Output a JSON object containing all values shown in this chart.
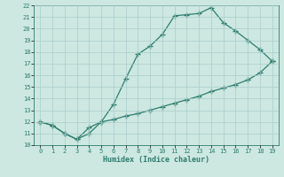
{
  "xlabel": "Humidex (Indice chaleur)",
  "line1_x": [
    0,
    1,
    2,
    3,
    4,
    5,
    6,
    7,
    8,
    9,
    10,
    11,
    12,
    13,
    14,
    15,
    16,
    17,
    18,
    19
  ],
  "line1_y": [
    12,
    11.7,
    11,
    10.5,
    11,
    12,
    13.5,
    15.7,
    17.8,
    18.5,
    19.5,
    21.1,
    21.2,
    21.3,
    21.8,
    20.5,
    19.8,
    19.0,
    18.2,
    17.2
  ],
  "line2_x": [
    0,
    1,
    2,
    3,
    4,
    5,
    6,
    7,
    8,
    9,
    10,
    11,
    12,
    13,
    14,
    15,
    16,
    17,
    18,
    19
  ],
  "line2_y": [
    12,
    11.7,
    11,
    10.5,
    11.5,
    12.0,
    12.2,
    12.5,
    12.7,
    13.0,
    13.3,
    13.6,
    13.9,
    14.2,
    14.6,
    14.9,
    15.2,
    15.6,
    16.2,
    17.2
  ],
  "line_color": "#2e7d6e",
  "bg_color": "#cce8e0",
  "grid_color": "#aacccc",
  "xlim": [
    -0.5,
    19.5
  ],
  "ylim": [
    10,
    22
  ],
  "xticks": [
    0,
    1,
    2,
    3,
    4,
    5,
    6,
    7,
    8,
    9,
    10,
    11,
    12,
    13,
    14,
    15,
    16,
    17,
    18,
    19
  ],
  "yticks": [
    10,
    11,
    12,
    13,
    14,
    15,
    16,
    17,
    18,
    19,
    20,
    21,
    22
  ]
}
